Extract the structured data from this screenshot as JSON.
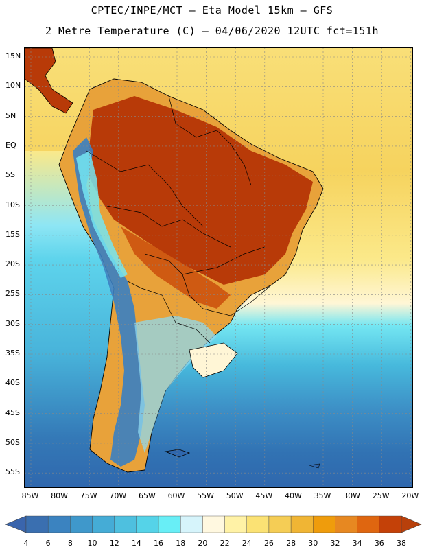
{
  "header": {
    "line1": "CPTEC/INPE/MCT –  Eta Model 15km – GFS",
    "line2": "2 Metre Temperature (C) – 04/06/2020 12UTC fct=151h"
  },
  "map": {
    "lat_labels": [
      "15N",
      "10N",
      "5N",
      "EQ",
      "5S",
      "10S",
      "15S",
      "20S",
      "25S",
      "30S",
      "35S",
      "40S",
      "45S",
      "50S",
      "55S"
    ],
    "lon_labels": [
      "85W",
      "80W",
      "75W",
      "70W",
      "65W",
      "60W",
      "55W",
      "50W",
      "45W",
      "40W",
      "35W",
      "30W",
      "25W",
      "20W"
    ],
    "colors": {
      "ocean_north": "#f7d56a",
      "ocean_mid": "#fff6c0",
      "ocean_south_cool": "#4fc6e4",
      "ocean_south_cold": "#2f6eb3",
      "land_hot": "#b83a08",
      "land_warm": "#e8a23a",
      "andes_cold": "#3a7fc2"
    }
  },
  "colorbar": {
    "ticks": [
      "4",
      "6",
      "8",
      "10",
      "12",
      "14",
      "16",
      "18",
      "20",
      "22",
      "24",
      "26",
      "28",
      "30",
      "32",
      "34",
      "36",
      "38"
    ],
    "colors": [
      "#3a6fb0",
      "#3b83c0",
      "#3f98cb",
      "#45acd6",
      "#4ec0df",
      "#55d3e8",
      "#68eef6",
      "#d6f4fb",
      "#fff8e0",
      "#fff2a6",
      "#fbe274",
      "#f5cd55",
      "#f0b534",
      "#ef9c0c",
      "#e78821",
      "#df6610",
      "#c44108"
    ],
    "low_color": "#3a65ad",
    "high_color": "#b8400b"
  }
}
